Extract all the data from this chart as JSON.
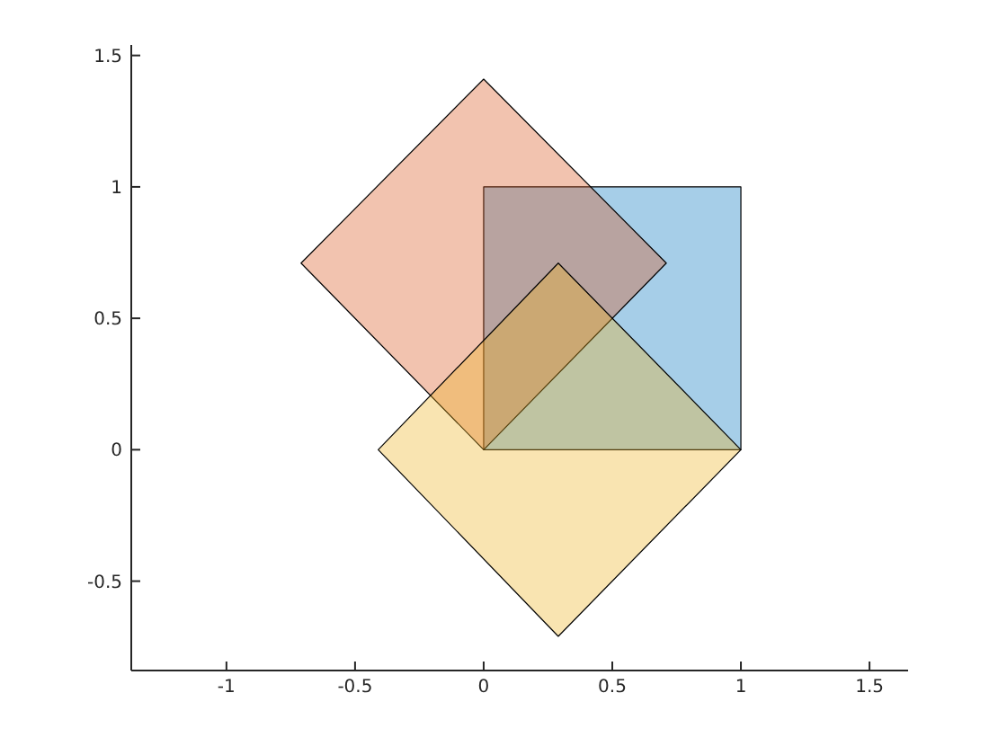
{
  "chart_data": {
    "type": "area",
    "xlim": [
      -1.37,
      1.65
    ],
    "ylim": [
      -0.84,
      1.54
    ],
    "xticks": [
      -1,
      -0.5,
      0,
      0.5,
      1,
      1.5
    ],
    "yticks": [
      -0.5,
      0,
      0.5,
      1,
      1.5
    ],
    "grid": false,
    "legend": false,
    "series": [
      {
        "color": "#0072bd",
        "x": [
          0,
          1,
          1,
          0,
          0
        ],
        "values": [
          0,
          0,
          1,
          1,
          0
        ]
      },
      {
        "color": "#d95319",
        "x": [
          0,
          0.71,
          0,
          -0.71,
          0
        ],
        "values": [
          0,
          0.71,
          1.41,
          0.71,
          0
        ]
      },
      {
        "color": "#edb120",
        "x": [
          0.29,
          1,
          0.29,
          -0.41,
          0.29
        ],
        "values": [
          0.71,
          0,
          -0.71,
          0,
          0.71
        ]
      }
    ]
  }
}
